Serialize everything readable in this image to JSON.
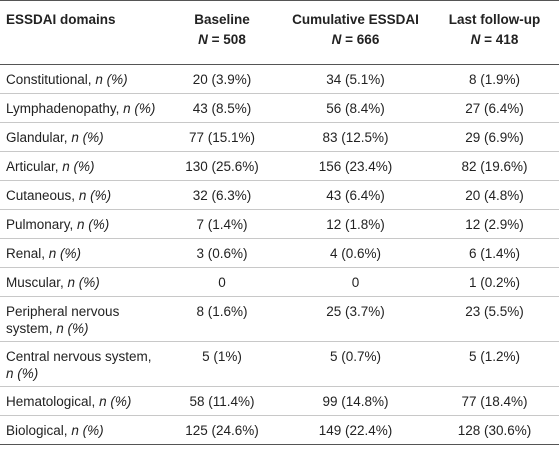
{
  "headers": {
    "domain": "ESSDAI domains",
    "baseline": "Baseline",
    "baseline_n": "508",
    "cumulative": "Cumulative ESSDAI",
    "cumulative_n": "666",
    "followup": "Last follow-up",
    "followup_n": "418",
    "n_symbol": "N",
    "equals": " = "
  },
  "unit_suffix": "n (%)",
  "rows": [
    {
      "label": "Constitutional,",
      "baseline": "20 (3.9%)",
      "cumulative": "34 (5.1%)",
      "followup": "8 (1.9%)"
    },
    {
      "label": "Lymphadenopathy,",
      "baseline": "43 (8.5%)",
      "cumulative": "56 (8.4%)",
      "followup": "27 (6.4%)"
    },
    {
      "label": "Glandular,",
      "baseline": "77 (15.1%)",
      "cumulative": "83 (12.5%)",
      "followup": "29 (6.9%)"
    },
    {
      "label": "Articular,",
      "baseline": "130 (25.6%)",
      "cumulative": "156 (23.4%)",
      "followup": "82 (19.6%)"
    },
    {
      "label": "Cutaneous,",
      "baseline": "32 (6.3%)",
      "cumulative": "43 (6.4%)",
      "followup": "20 (4.8%)"
    },
    {
      "label": "Pulmonary,",
      "baseline": "7 (1.4%)",
      "cumulative": "12 (1.8%)",
      "followup": "12 (2.9%)"
    },
    {
      "label": "Renal,",
      "baseline": "3 (0.6%)",
      "cumulative": "4 (0.6%)",
      "followup": "6 (1.4%)"
    },
    {
      "label": "Muscular,",
      "baseline": "0",
      "cumulative": "0",
      "followup": "1 (0.2%)"
    },
    {
      "label": "Peripheral nervous system,",
      "baseline": "8 (1.6%)",
      "cumulative": "25 (3.7%)",
      "followup": "23 (5.5%)"
    },
    {
      "label": "Central nervous system,",
      "baseline": "5 (1%)",
      "cumulative": "5 (0.7%)",
      "followup": "5 (1.2%)"
    },
    {
      "label": "Hematological,",
      "baseline": "58 (11.4%)",
      "cumulative": "99 (14.8%)",
      "followup": "77 (18.4%)"
    },
    {
      "label": "Biological,",
      "baseline": "125 (24.6%)",
      "cumulative": "149 (22.4%)",
      "followup": "128 (30.6%)"
    }
  ]
}
